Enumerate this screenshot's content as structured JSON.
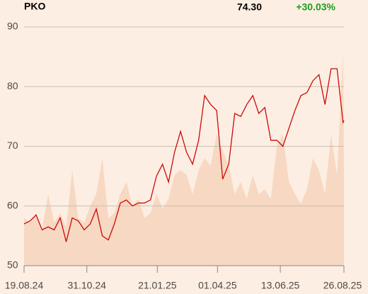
{
  "chart_data": {
    "type": "line",
    "title": "PKO",
    "last_price": "74.30",
    "change": "+30.03%",
    "change_color": "#1a9e1a",
    "x": [
      "19.08.24",
      "26.08.24",
      "02.09.24",
      "09.09.24",
      "16.09.24",
      "23.09.24",
      "30.09.24",
      "07.10.24",
      "14.10.24",
      "21.10.24",
      "28.10.24",
      "04.11.24",
      "11.11.24",
      "18.11.24",
      "25.11.24",
      "02.12.24",
      "09.12.24",
      "16.12.24",
      "23.12.24",
      "30.12.24",
      "06.01.25",
      "13.01.25",
      "20.01.25",
      "27.01.25",
      "03.02.25",
      "10.02.25",
      "17.02.25",
      "24.02.25",
      "03.03.25",
      "10.03.25",
      "17.03.25",
      "24.03.25",
      "31.03.25",
      "07.04.25",
      "14.04.25",
      "21.04.25",
      "28.04.25",
      "05.05.25",
      "12.05.25",
      "19.05.25",
      "26.05.25",
      "02.06.25",
      "09.06.25",
      "16.06.25",
      "23.06.25",
      "30.06.25",
      "07.07.25",
      "14.07.25",
      "21.07.25",
      "28.07.25",
      "04.08.25",
      "11.08.25",
      "18.08.25",
      "25.08.25",
      "26.08.25"
    ],
    "series": [
      {
        "color": "#cc0a0a",
        "values": [
          57,
          57.5,
          58.5,
          56,
          56.5,
          56,
          58,
          54,
          58,
          57.5,
          56,
          57,
          59.5,
          55,
          54.3,
          57,
          60.5,
          61,
          60,
          60.5,
          60.5,
          61,
          65,
          67,
          64,
          69,
          72.5,
          69,
          67,
          71,
          78.5,
          77,
          76,
          64.5,
          67,
          75.5,
          75,
          77,
          78.5,
          75.5,
          76.5,
          71,
          71,
          70,
          73,
          76,
          78.5,
          79,
          81,
          82,
          77,
          83,
          83,
          74,
          74.3
        ]
      },
      {
        "axis": "y2",
        "color": "#f7d8c2",
        "values": [
          20,
          18,
          22,
          15,
          30,
          18,
          22,
          16,
          40,
          20,
          18,
          25,
          30,
          45,
          20,
          22,
          30,
          35,
          25,
          28,
          20,
          22,
          30,
          24,
          28,
          38,
          40,
          38,
          30,
          40,
          45,
          42,
          55,
          48,
          42,
          30,
          35,
          28,
          38,
          30,
          32,
          28,
          50,
          55,
          35,
          30,
          26,
          32,
          45,
          40,
          30,
          55,
          38,
          90,
          40
        ]
      }
    ],
    "xticks": [
      "19.08.24",
      "31.10.24",
      "21.01.25",
      "01.04.25",
      "13.06.25",
      "26.08.25"
    ],
    "xlim": [
      "19.08.24",
      "26.08.25"
    ],
    "ylim": [
      50,
      90
    ],
    "yticks": [
      50,
      60,
      70,
      80,
      90
    ],
    "y2lim": [
      0,
      100
    ],
    "grid": true
  }
}
